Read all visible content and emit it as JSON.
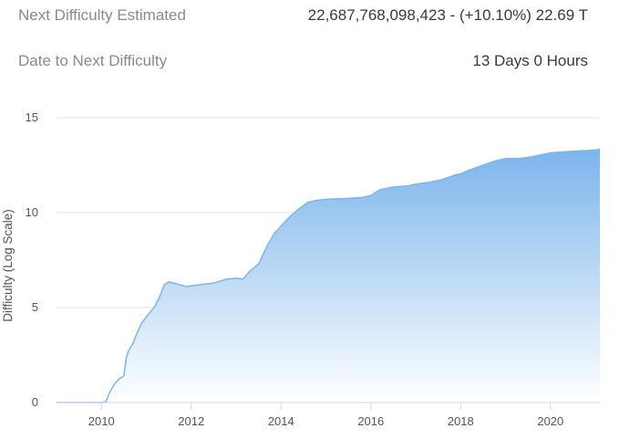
{
  "stats": {
    "next_difficulty_label": "Next Difficulty Estimated",
    "next_difficulty_value": "22,687,768,098,423 - (+10.10%) 22.69 T",
    "date_label": "Date to Next Difficulty",
    "date_value": "13 Days 0 Hours"
  },
  "chart_data": {
    "type": "area",
    "title": "",
    "xlabel": "",
    "ylabel": "Difficulty (Log Scale)",
    "xlim": [
      2009.0,
      2021.1
    ],
    "ylim": [
      0,
      15
    ],
    "x_ticks": [
      2010,
      2012,
      2014,
      2016,
      2018,
      2020
    ],
    "y_ticks": [
      0,
      5,
      10,
      15
    ],
    "grid": true,
    "legend": "none",
    "colors": {
      "line": "#7cb5ec",
      "fill_top": "#7cb5ec",
      "fill_bottom": "#ffffff",
      "grid": "#e6e6e6",
      "axis": "#ccd6eb"
    },
    "series": [
      {
        "x": [
          2009.0,
          2009.5,
          2010.0,
          2010.1,
          2010.2,
          2010.3,
          2010.4,
          2010.5,
          2010.55,
          2010.6,
          2010.7,
          2010.8,
          2010.9,
          2011.0,
          2011.1,
          2011.2,
          2011.3,
          2011.4,
          2011.5,
          2011.6,
          2011.75,
          2011.9,
          2012.0,
          2012.2,
          2012.5,
          2012.8,
          2013.0,
          2013.15,
          2013.3,
          2013.5,
          2013.7,
          2013.85,
          2014.0,
          2014.2,
          2014.4,
          2014.6,
          2014.8,
          2015.0,
          2015.5,
          2015.8,
          2016.0,
          2016.2,
          2016.5,
          2016.8,
          2017.0,
          2017.3,
          2017.6,
          2017.9,
          2018.0,
          2018.2,
          2018.5,
          2018.8,
          2019.0,
          2019.3,
          2019.6,
          2020.0,
          2020.3,
          2020.6,
          2021.0,
          2021.1
        ],
        "y": [
          0.0,
          0.0,
          0.0,
          0.05,
          0.6,
          1.0,
          1.25,
          1.4,
          2.3,
          2.7,
          3.1,
          3.7,
          4.2,
          4.5,
          4.8,
          5.1,
          5.6,
          6.2,
          6.35,
          6.3,
          6.2,
          6.1,
          6.15,
          6.2,
          6.3,
          6.5,
          6.55,
          6.5,
          6.9,
          7.3,
          8.3,
          8.9,
          9.3,
          9.8,
          10.2,
          10.55,
          10.65,
          10.7,
          10.75,
          10.8,
          10.9,
          11.2,
          11.35,
          11.4,
          11.5,
          11.6,
          11.75,
          12.0,
          12.05,
          12.25,
          12.5,
          12.75,
          12.85,
          12.85,
          12.95,
          13.15,
          13.2,
          13.25,
          13.3,
          13.35
        ]
      }
    ]
  }
}
